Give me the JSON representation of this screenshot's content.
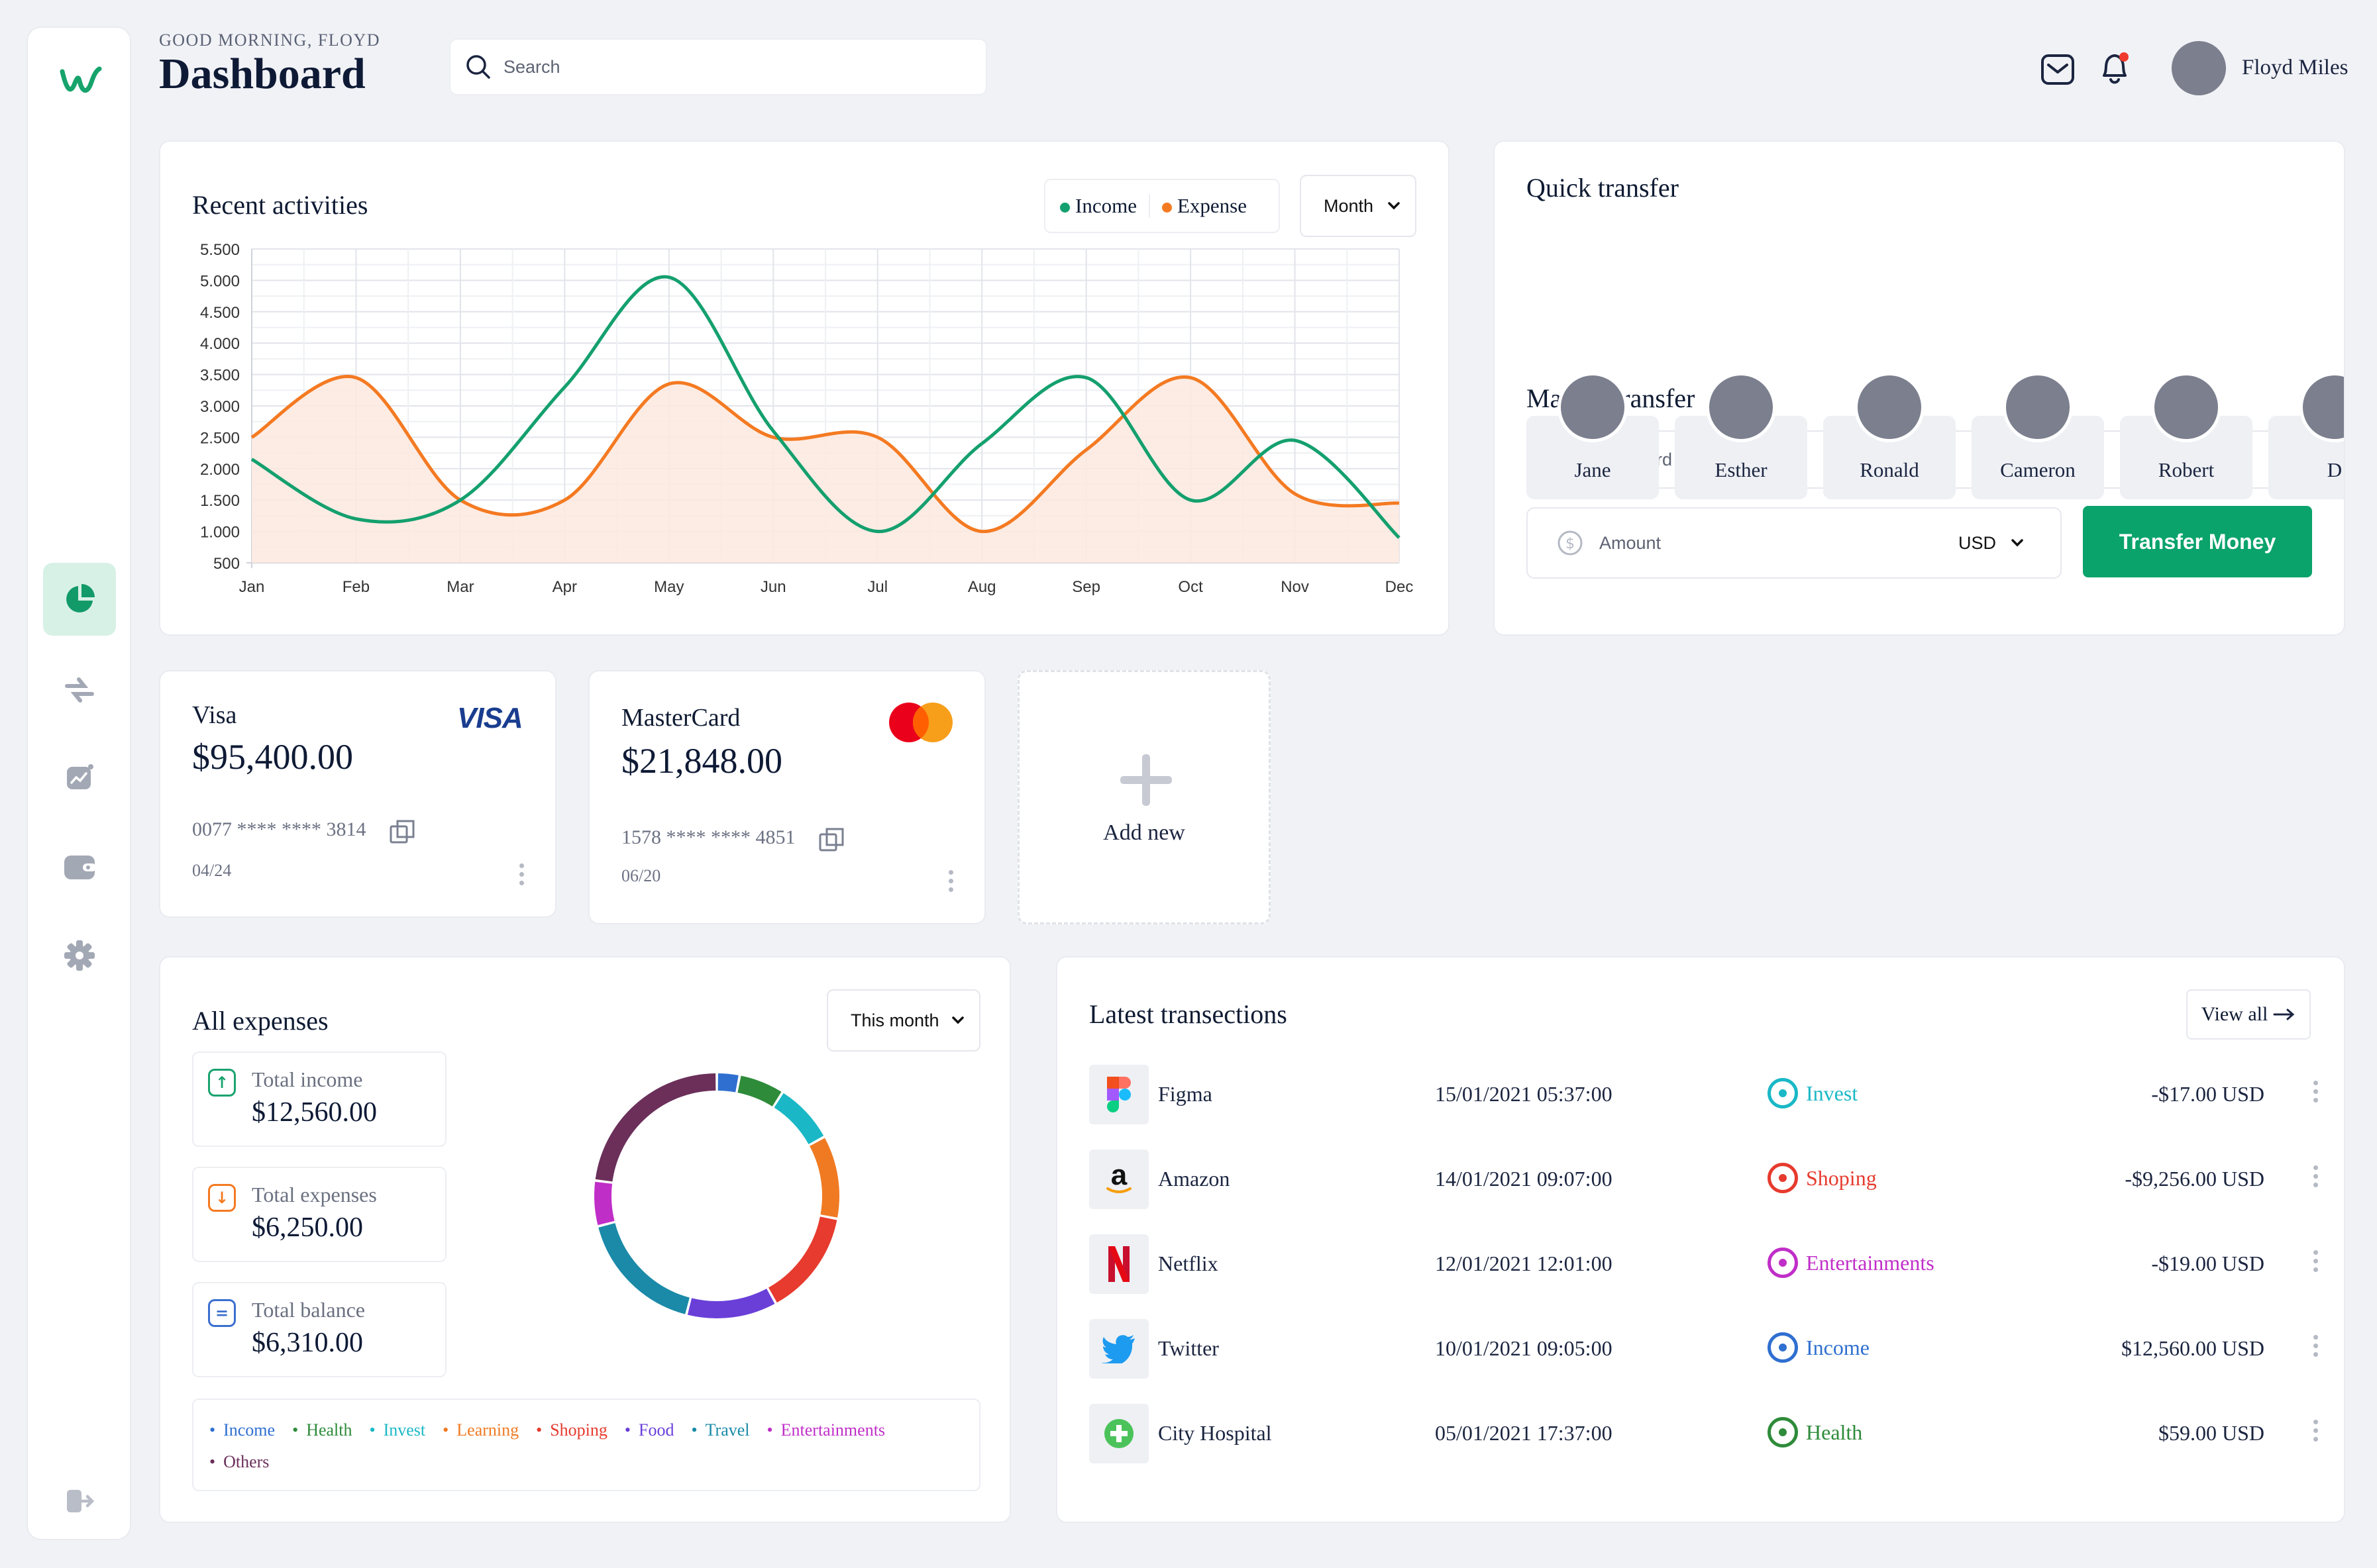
{
  "header": {
    "greeting": "GOOD MORNING, FLOYD",
    "title": "Dashboard",
    "search_placeholder": "Search",
    "user_name": "Floyd Miles"
  },
  "sidebar": {
    "logo": "w",
    "items": [
      {
        "icon": "pie-chart-icon",
        "active": true
      },
      {
        "icon": "transfer-icon",
        "active": false
      },
      {
        "icon": "analytics-icon",
        "active": false
      },
      {
        "icon": "wallet-icon",
        "active": false
      },
      {
        "icon": "settings-icon",
        "active": false
      }
    ],
    "bottom_icon": "logout-icon"
  },
  "activities": {
    "title": "Recent activities",
    "legend_income": "Income",
    "legend_expense": "Expense",
    "period": "Month"
  },
  "chart_data": {
    "type": "line",
    "title": "Recent activities",
    "categories": [
      "Jan",
      "Feb",
      "Mar",
      "Apr",
      "May",
      "Jun",
      "Jul",
      "Aug",
      "Sep",
      "Oct",
      "Nov",
      "Dec"
    ],
    "y_ticks": [
      "5.500",
      "5.000",
      "4.500",
      "4.000",
      "3.500",
      "3.000",
      "2.500",
      "2.000",
      "1.500",
      "1.000",
      "500"
    ],
    "ylim": [
      500,
      5500
    ],
    "series": [
      {
        "name": "Income",
        "color": "#14a06e",
        "values": [
          2150,
          1200,
          1500,
          3300,
          5050,
          2600,
          1000,
          2400,
          3450,
          1500,
          2450,
          900
        ]
      },
      {
        "name": "Expense",
        "color": "#f47a22",
        "values": [
          2500,
          3450,
          1500,
          1500,
          3350,
          2500,
          2500,
          1000,
          2300,
          3450,
          1600,
          1450
        ]
      }
    ]
  },
  "quick_transfer": {
    "title": "Quick transfer",
    "people": [
      "Jane",
      "Esther",
      "Ronald",
      "Cameron",
      "Robert",
      "D"
    ],
    "manual_title": "Manual transfer",
    "card_placeholder": "Credit card",
    "amount_placeholder": "Amount",
    "currency": "USD",
    "button": "Transfer Money"
  },
  "cards": [
    {
      "name": "Visa",
      "balance": "$95,400.00",
      "number": "0077 **** **** 3814",
      "expiry": "04/24",
      "brand": "VISA"
    },
    {
      "name": "MasterCard",
      "balance": "$21,848.00",
      "number": "1578 **** **** 4851",
      "expiry": "06/20",
      "brand": "mastercard"
    }
  ],
  "add_new": "Add new",
  "expenses": {
    "title": "All expenses",
    "period": "This month",
    "stats": [
      {
        "label": "Total income",
        "value": "$12,560.00",
        "color": "#1aa36f",
        "glyph": "↑"
      },
      {
        "label": "Total expenses",
        "value": "$6,250.00",
        "color": "#f47a22",
        "glyph": "↓"
      },
      {
        "label": "Total balance",
        "value": "$6,310.00",
        "color": "#3b6fd0",
        "glyph": "="
      }
    ],
    "legend": [
      {
        "label": "Income",
        "color": "#2f6fd0"
      },
      {
        "label": "Health",
        "color": "#2e8b3a"
      },
      {
        "label": "Invest",
        "color": "#1ab8c6"
      },
      {
        "label": "Learning",
        "color": "#f07a22"
      },
      {
        "label": "Shoping",
        "color": "#e63b2e"
      },
      {
        "label": "Food",
        "color": "#6a3fd8"
      },
      {
        "label": "Travel",
        "color": "#1a8aa8"
      },
      {
        "label": "Entertainments",
        "color": "#c02ec8"
      },
      {
        "label": "Others",
        "color": "#6b2f5a"
      }
    ],
    "donut": [
      {
        "label": "Income",
        "value": 3,
        "color": "#2f6fd0"
      },
      {
        "label": "Health",
        "value": 6,
        "color": "#2e8b3a"
      },
      {
        "label": "Invest",
        "value": 8,
        "color": "#1ab8c6"
      },
      {
        "label": "Learning",
        "value": 11,
        "color": "#f07a22"
      },
      {
        "label": "Shoping",
        "value": 14,
        "color": "#e63b2e"
      },
      {
        "label": "Food",
        "value": 12,
        "color": "#6a3fd8"
      },
      {
        "label": "Travel",
        "value": 17,
        "color": "#1a8aa8"
      },
      {
        "label": "Entertainments",
        "value": 6,
        "color": "#c02ec8"
      },
      {
        "label": "Others",
        "value": 23,
        "color": "#6b2f5a"
      }
    ]
  },
  "transactions": {
    "title": "Latest transections",
    "view_all": "View all",
    "rows": [
      {
        "name": "Figma",
        "date": "15/01/2021 05:37:00",
        "category": "Invest",
        "cat_color": "#1ab8c6",
        "amount": "-$17.00 USD",
        "logo": "figma-logo"
      },
      {
        "name": "Amazon",
        "date": "14/01/2021 09:07:00",
        "category": "Shoping",
        "cat_color": "#e63b2e",
        "amount": "-$9,256.00 USD",
        "logo": "amazon-logo"
      },
      {
        "name": "Netflix",
        "date": "12/01/2021 12:01:00",
        "category": "Entertainments",
        "cat_color": "#c02ec8",
        "amount": "-$19.00 USD",
        "logo": "netflix-logo"
      },
      {
        "name": "Twitter",
        "date": "10/01/2021 09:05:00",
        "category": "Income",
        "cat_color": "#2f6fd0",
        "amount": "$12,560.00 USD",
        "logo": "twitter-logo"
      },
      {
        "name": "City Hospital",
        "date": "05/01/2021 17:37:00",
        "category": "Health",
        "cat_color": "#2e8b3a",
        "amount": "$59.00 USD",
        "logo": "hospital-logo"
      }
    ]
  }
}
